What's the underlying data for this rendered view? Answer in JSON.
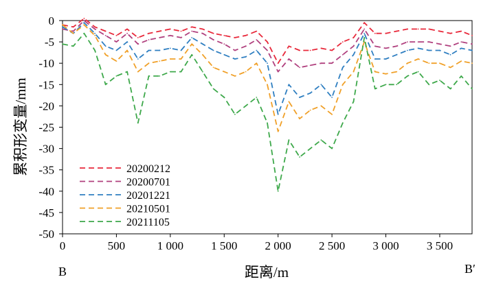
{
  "chart_data": {
    "type": "line",
    "xlabel": "距离/m",
    "ylabel": "累积形变量/mm",
    "xlim": [
      0,
      3800
    ],
    "ylim": [
      -50,
      0
    ],
    "x_ticks": [
      0,
      500,
      1000,
      1500,
      2000,
      2500,
      3000,
      3500
    ],
    "x_tick_labels": [
      "0",
      "500",
      "1 000",
      "1 500",
      "2 000",
      "2 500",
      "3 000",
      "3 500"
    ],
    "y_ticks": [
      0,
      -5,
      -10,
      -15,
      -20,
      -25,
      -30,
      -35,
      -40,
      -45,
      -50
    ],
    "y_tick_labels": [
      "0",
      "-5",
      "-10",
      "-15",
      "-20",
      "-25",
      "-30",
      "-35",
      "-40",
      "-45",
      "-50"
    ],
    "start_label": "B",
    "end_label": "B′",
    "legend_position": "bottom-left",
    "x": [
      0,
      100,
      200,
      300,
      400,
      500,
      600,
      700,
      800,
      900,
      1000,
      1100,
      1200,
      1300,
      1400,
      1500,
      1600,
      1700,
      1800,
      1900,
      2000,
      2100,
      2200,
      2300,
      2400,
      2500,
      2600,
      2700,
      2800,
      2900,
      3000,
      3100,
      3200,
      3300,
      3400,
      3500,
      3600,
      3700,
      3800
    ],
    "series": [
      {
        "name": "20200212",
        "color": "#e8283a",
        "values": [
          -1,
          -1.5,
          0.5,
          -1.5,
          -2.5,
          -3.5,
          -2,
          -4,
          -3,
          -2.5,
          -2,
          -2.5,
          -1.5,
          -2,
          -3,
          -3.5,
          -4,
          -3.5,
          -2.5,
          -5,
          -10,
          -6,
          -7,
          -7,
          -6.5,
          -7,
          -5,
          -4,
          -0.5,
          -3,
          -3,
          -2.5,
          -2,
          -2,
          -2,
          -2.5,
          -3,
          -2.5,
          -3.5
        ]
      },
      {
        "name": "20200701",
        "color": "#b0407e",
        "values": [
          -2,
          -2.5,
          0,
          -2,
          -3.5,
          -5,
          -3,
          -5.5,
          -4.5,
          -4,
          -3.5,
          -4,
          -2.5,
          -3,
          -4.5,
          -5.5,
          -7,
          -6,
          -4.5,
          -7,
          -12,
          -9,
          -11,
          -10.5,
          -10,
          -10,
          -8,
          -6,
          -2,
          -6,
          -6.5,
          -6,
          -5,
          -5,
          -5,
          -5.5,
          -6,
          -5,
          -5.5
        ]
      },
      {
        "name": "20201221",
        "color": "#2f7fc1",
        "values": [
          -1.5,
          -3,
          -0.5,
          -3,
          -6,
          -7,
          -5,
          -9,
          -7,
          -7,
          -6.5,
          -7,
          -4,
          -5.5,
          -7,
          -8,
          -9,
          -8.5,
          -7,
          -10,
          -22,
          -15,
          -18,
          -17,
          -15,
          -18,
          -11,
          -8,
          -3,
          -9,
          -9,
          -8,
          -7,
          -6.5,
          -7,
          -7,
          -8,
          -6.5,
          -7
        ]
      },
      {
        "name": "20210501",
        "color": "#f0a028",
        "values": [
          -1,
          -3,
          -1,
          -3.5,
          -8,
          -9.5,
          -7,
          -12,
          -10,
          -9.5,
          -9,
          -9,
          -5.5,
          -8,
          -11,
          -12,
          -13,
          -12,
          -10,
          -15,
          -26,
          -19,
          -23,
          -21,
          -20,
          -22,
          -15,
          -12,
          -5,
          -12,
          -12.5,
          -12,
          -10,
          -9,
          -10,
          -10,
          -11,
          -9.5,
          -10
        ]
      },
      {
        "name": "20211105",
        "color": "#3da84a",
        "values": [
          -5.5,
          -6,
          -3,
          -7,
          -15,
          -13,
          -12,
          -24,
          -13,
          -13,
          -12,
          -12,
          -8,
          -12,
          -16,
          -18,
          -22,
          -20,
          -18,
          -24,
          -40,
          -28,
          -32,
          -30,
          -28,
          -30,
          -24,
          -19,
          -4,
          -16,
          -15,
          -15,
          -13,
          -12,
          -15,
          -14,
          -16,
          -13,
          -16
        ]
      }
    ]
  }
}
